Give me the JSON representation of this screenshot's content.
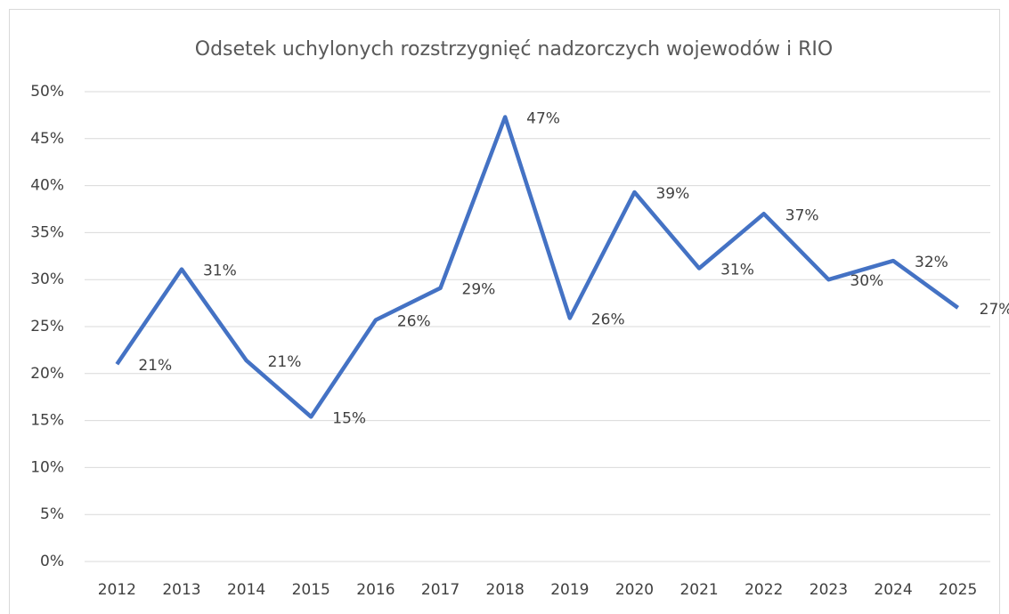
{
  "chart_data": {
    "type": "line",
    "title": "Odsetek uchylonych rozstrzygnięć nadzorczych wojewodów i RIO",
    "categories": [
      "2012",
      "2013",
      "2014",
      "2015",
      "2016",
      "2017",
      "2018",
      "2019",
      "2020",
      "2021",
      "2022",
      "2023",
      "2024",
      "2025"
    ],
    "series": [
      {
        "name": "Odsetek",
        "color": "#4472c4",
        "values": [
          21.0,
          31.1,
          21.4,
          15.4,
          25.7,
          29.1,
          47.3,
          25.9,
          39.3,
          31.2,
          37.0,
          30.0,
          32.0,
          27.0
        ],
        "value_labels": [
          "21%",
          "31%",
          "21%",
          "15%",
          "26%",
          "29%",
          "47%",
          "26%",
          "39%",
          "31%",
          "37%",
          "30%",
          "32%",
          "27%"
        ]
      }
    ],
    "ylim": [
      0,
      50
    ],
    "yticks": [
      {
        "value": 0,
        "label": "0%"
      },
      {
        "value": 5,
        "label": "5%"
      },
      {
        "value": 10,
        "label": "10%"
      },
      {
        "value": 15,
        "label": "15%"
      },
      {
        "value": 20,
        "label": "20%"
      },
      {
        "value": 25,
        "label": "25%"
      },
      {
        "value": 30,
        "label": "30%"
      },
      {
        "value": 35,
        "label": "35%"
      },
      {
        "value": 40,
        "label": "40%"
      },
      {
        "value": 45,
        "label": "45%"
      },
      {
        "value": 50,
        "label": "50%"
      }
    ],
    "grid": true
  }
}
